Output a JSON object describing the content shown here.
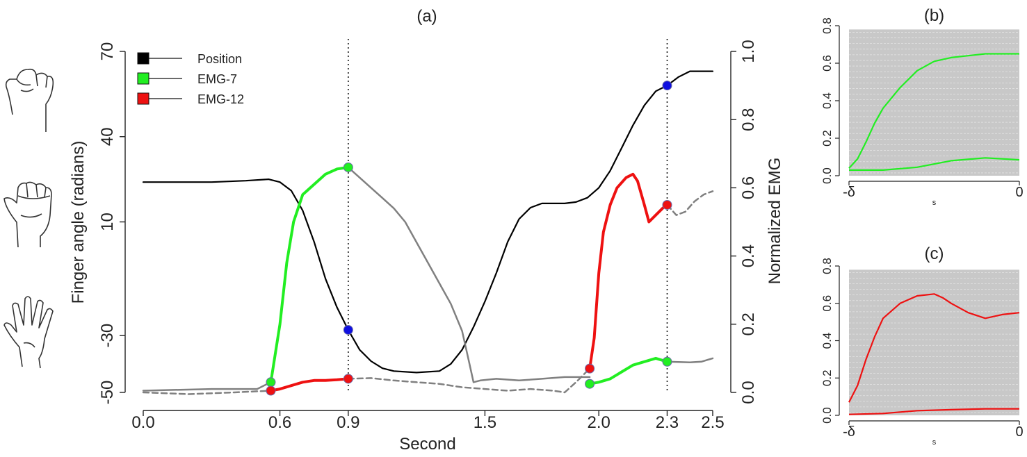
{
  "panels": {
    "a": "(a)",
    "b": "(b)",
    "c": "(c)"
  },
  "colors": {
    "position": "#000000",
    "emg7": "#22ee22",
    "emg12": "#ee1111",
    "gray": "#808080",
    "marker_blue": "#1010e0",
    "band": "#c8c8c8"
  },
  "icons": [
    "fist-icon",
    "half-closed-hand-icon",
    "open-hand-icon"
  ],
  "chart_data": [
    {
      "id": "a",
      "type": "line",
      "title": "(a)",
      "xlabel": "Second",
      "ylabel": "Finger angle (radians)",
      "y2label": "Normalized EMG",
      "xlim": [
        0,
        2.5
      ],
      "ylim": [
        -50,
        70
      ],
      "y2lim": [
        0,
        1
      ],
      "xticks": [
        {
          "v": 0.0,
          "label": "0.0"
        },
        {
          "v": 0.6,
          "label": "0.6"
        },
        {
          "v": 0.9,
          "label": "0.9"
        },
        {
          "v": 1.5,
          "label": "1.5"
        },
        {
          "v": 2.0,
          "label": "2.0"
        },
        {
          "v": 2.3,
          "label": "2.3"
        },
        {
          "v": 2.5,
          "label": "2.5"
        }
      ],
      "yticks": [
        {
          "v": -50,
          "label": "-50"
        },
        {
          "v": -30,
          "label": "-30"
        },
        {
          "v": 10,
          "label": "10"
        },
        {
          "v": 40,
          "label": "40"
        },
        {
          "v": 70,
          "label": "70"
        }
      ],
      "y2ticks": [
        {
          "v": 0.0,
          "label": "0.0"
        },
        {
          "v": 0.2,
          "label": "0.2"
        },
        {
          "v": 0.4,
          "label": "0.4"
        },
        {
          "v": 0.6,
          "label": "0.6"
        },
        {
          "v": 0.8,
          "label": "0.8"
        },
        {
          "v": 1.0,
          "label": "1.0"
        }
      ],
      "vlines": [
        0.9,
        2.3
      ],
      "legend": {
        "placement": "top-left",
        "entries": [
          {
            "label": "Position",
            "color": "#000000"
          },
          {
            "label": "EMG-7",
            "color": "#22ee22"
          },
          {
            "label": "EMG-12",
            "color": "#ee1111"
          }
        ]
      },
      "series": [
        {
          "name": "Position",
          "axis": "left",
          "color": "#000000",
          "width": 2.2,
          "points": [
            [
              0,
              24
            ],
            [
              0.3,
              24
            ],
            [
              0.45,
              24.5
            ],
            [
              0.55,
              25
            ],
            [
              0.6,
              24
            ],
            [
              0.65,
              21
            ],
            [
              0.7,
              14
            ],
            [
              0.75,
              3
            ],
            [
              0.8,
              -10
            ],
            [
              0.85,
              -20
            ],
            [
              0.9,
              -28
            ],
            [
              0.95,
              -35
            ],
            [
              1.0,
              -39
            ],
            [
              1.05,
              -41.5
            ],
            [
              1.1,
              -42.5
            ],
            [
              1.2,
              -43
            ],
            [
              1.3,
              -42.5
            ],
            [
              1.35,
              -40
            ],
            [
              1.4,
              -35
            ],
            [
              1.45,
              -27
            ],
            [
              1.5,
              -18
            ],
            [
              1.55,
              -8
            ],
            [
              1.6,
              3
            ],
            [
              1.65,
              11
            ],
            [
              1.7,
              15
            ],
            [
              1.75,
              16.5
            ],
            [
              1.8,
              16.5
            ],
            [
              1.85,
              16.5
            ],
            [
              1.9,
              17
            ],
            [
              1.95,
              18.5
            ],
            [
              2.0,
              22
            ],
            [
              2.05,
              28
            ],
            [
              2.1,
              36
            ],
            [
              2.15,
              44
            ],
            [
              2.2,
              51
            ],
            [
              2.25,
              56
            ],
            [
              2.3,
              58
            ],
            [
              2.35,
              61
            ],
            [
              2.4,
              63
            ],
            [
              2.5,
              63
            ]
          ]
        },
        {
          "name": "EMG-7",
          "axis": "right",
          "color": "#22ee22",
          "width": 4,
          "points": [
            [
              0.56,
              0.03
            ],
            [
              0.6,
              0.2
            ],
            [
              0.63,
              0.38
            ],
            [
              0.66,
              0.5
            ],
            [
              0.7,
              0.58
            ],
            [
              0.75,
              0.61
            ],
            [
              0.8,
              0.64
            ],
            [
              0.85,
              0.655
            ],
            [
              0.9,
              0.66
            ]
          ]
        },
        {
          "name": "EMG-7",
          "axis": "right",
          "color": "#22ee22",
          "width": 4,
          "points": [
            [
              1.96,
              0.025
            ],
            [
              2.0,
              0.03
            ],
            [
              2.05,
              0.04
            ],
            [
              2.1,
              0.06
            ],
            [
              2.15,
              0.08
            ],
            [
              2.2,
              0.09
            ],
            [
              2.25,
              0.1
            ],
            [
              2.3,
              0.09
            ]
          ]
        },
        {
          "name": "EMG-12",
          "axis": "right",
          "color": "#ee1111",
          "width": 4,
          "points": [
            [
              0.56,
              0.005
            ],
            [
              0.6,
              0.01
            ],
            [
              0.65,
              0.02
            ],
            [
              0.7,
              0.03
            ],
            [
              0.75,
              0.035
            ],
            [
              0.8,
              0.035
            ],
            [
              0.85,
              0.037
            ],
            [
              0.9,
              0.04
            ]
          ]
        },
        {
          "name": "EMG-12",
          "axis": "right",
          "color": "#ee1111",
          "width": 4,
          "points": [
            [
              1.96,
              0.07
            ],
            [
              1.98,
              0.16
            ],
            [
              2.0,
              0.35
            ],
            [
              2.02,
              0.47
            ],
            [
              2.05,
              0.55
            ],
            [
              2.08,
              0.6
            ],
            [
              2.12,
              0.63
            ],
            [
              2.15,
              0.64
            ],
            [
              2.17,
              0.62
            ],
            [
              2.2,
              0.55
            ],
            [
              2.22,
              0.5
            ],
            [
              2.25,
              0.52
            ],
            [
              2.28,
              0.54
            ],
            [
              2.3,
              0.55
            ]
          ]
        },
        {
          "name": "",
          "axis": "right",
          "color": "#808080",
          "width": 2.5,
          "points": [
            [
              0,
              0.005
            ],
            [
              0.3,
              0.01
            ],
            [
              0.5,
              0.01
            ],
            [
              0.56,
              0.03
            ]
          ]
        },
        {
          "name": "",
          "axis": "right",
          "color": "#808080",
          "width": 2.5,
          "dash": "8,5",
          "points": [
            [
              0,
              0.0
            ],
            [
              0.2,
              -0.005
            ],
            [
              0.4,
              0.0
            ],
            [
              0.56,
              0.005
            ]
          ]
        },
        {
          "name": "",
          "axis": "right",
          "color": "#808080",
          "width": 2.5,
          "points": [
            [
              0.9,
              0.66
            ],
            [
              0.95,
              0.63
            ],
            [
              1.0,
              0.6
            ],
            [
              1.05,
              0.57
            ],
            [
              1.1,
              0.54
            ],
            [
              1.15,
              0.5
            ],
            [
              1.2,
              0.44
            ],
            [
              1.25,
              0.38
            ],
            [
              1.3,
              0.32
            ],
            [
              1.35,
              0.26
            ],
            [
              1.4,
              0.18
            ],
            [
              1.43,
              0.09
            ],
            [
              1.45,
              0.03
            ],
            [
              1.48,
              0.035
            ],
            [
              1.55,
              0.04
            ],
            [
              1.65,
              0.035
            ],
            [
              1.75,
              0.04
            ],
            [
              1.85,
              0.045
            ],
            [
              1.96,
              0.045
            ]
          ]
        },
        {
          "name": "",
          "axis": "right",
          "color": "#808080",
          "width": 2.5,
          "dash": "8,5",
          "points": [
            [
              0.9,
              0.04
            ],
            [
              1.0,
              0.042
            ],
            [
              1.1,
              0.035
            ],
            [
              1.2,
              0.03
            ],
            [
              1.3,
              0.025
            ],
            [
              1.4,
              0.015
            ],
            [
              1.5,
              0.01
            ],
            [
              1.6,
              0.005
            ],
            [
              1.7,
              0.01
            ],
            [
              1.8,
              0.005
            ],
            [
              1.85,
              0.0
            ],
            [
              1.9,
              0.03
            ],
            [
              1.96,
              0.07
            ]
          ]
        },
        {
          "name": "",
          "axis": "right",
          "color": "#808080",
          "width": 2.5,
          "points": [
            [
              2.3,
              0.09
            ],
            [
              2.4,
              0.088
            ],
            [
              2.45,
              0.09
            ],
            [
              2.5,
              0.1
            ]
          ]
        },
        {
          "name": "",
          "axis": "right",
          "color": "#808080",
          "width": 2.5,
          "dash": "8,5",
          "points": [
            [
              2.3,
              0.55
            ],
            [
              2.34,
              0.52
            ],
            [
              2.38,
              0.53
            ],
            [
              2.42,
              0.56
            ],
            [
              2.46,
              0.58
            ],
            [
              2.5,
              0.59
            ]
          ]
        }
      ],
      "markers": [
        {
          "x": 0.9,
          "y": -28,
          "axis": "left",
          "color": "#1010e0"
        },
        {
          "x": 2.3,
          "y": 58,
          "axis": "left",
          "color": "#1010e0"
        },
        {
          "x": 0.56,
          "y": 0.03,
          "axis": "right",
          "color": "#22ee22"
        },
        {
          "x": 0.9,
          "y": 0.66,
          "axis": "right",
          "color": "#22ee22"
        },
        {
          "x": 1.96,
          "y": 0.025,
          "axis": "right",
          "color": "#22ee22"
        },
        {
          "x": 2.3,
          "y": 0.09,
          "axis": "right",
          "color": "#22ee22"
        },
        {
          "x": 0.56,
          "y": 0.005,
          "axis": "right",
          "color": "#ee1111"
        },
        {
          "x": 0.9,
          "y": 0.04,
          "axis": "right",
          "color": "#ee1111"
        },
        {
          "x": 1.96,
          "y": 0.07,
          "axis": "right",
          "color": "#ee1111"
        },
        {
          "x": 2.3,
          "y": 0.55,
          "axis": "right",
          "color": "#ee1111"
        }
      ]
    },
    {
      "id": "b",
      "type": "line",
      "title": "(b)",
      "xlabel": "s",
      "xlim": [
        -1,
        0
      ],
      "ylim": [
        0,
        0.8
      ],
      "xticks": [
        {
          "v": -1,
          "label": "-δ"
        },
        {
          "v": 0,
          "label": "0"
        }
      ],
      "yticks": [
        {
          "v": 0.0,
          "label": "0.0"
        },
        {
          "v": 0.2,
          "label": "0.2"
        },
        {
          "v": 0.4,
          "label": "0.4"
        },
        {
          "v": 0.6,
          "label": "0.6"
        },
        {
          "v": 0.8,
          "label": "0.8"
        }
      ],
      "band": {
        "low": 0.0,
        "high": 0.78,
        "color": "#c8c8c8"
      },
      "series": [
        {
          "name": "",
          "color": "#22ee22",
          "width": 2.2,
          "points": [
            [
              -1,
              0.04
            ],
            [
              -0.95,
              0.09
            ],
            [
              -0.9,
              0.18
            ],
            [
              -0.85,
              0.28
            ],
            [
              -0.8,
              0.36
            ],
            [
              -0.7,
              0.47
            ],
            [
              -0.6,
              0.56
            ],
            [
              -0.5,
              0.61
            ],
            [
              -0.4,
              0.63
            ],
            [
              -0.3,
              0.64
            ],
            [
              -0.2,
              0.65
            ],
            [
              -0.1,
              0.65
            ],
            [
              0,
              0.65
            ]
          ]
        },
        {
          "name": "",
          "color": "#22ee22",
          "width": 2.2,
          "points": [
            [
              -1,
              0.03
            ],
            [
              -0.8,
              0.03
            ],
            [
              -0.6,
              0.045
            ],
            [
              -0.4,
              0.08
            ],
            [
              -0.2,
              0.095
            ],
            [
              0,
              0.085
            ]
          ]
        }
      ]
    },
    {
      "id": "c",
      "type": "line",
      "title": "(c)",
      "xlabel": "s",
      "xlim": [
        -1,
        0
      ],
      "ylim": [
        0,
        0.8
      ],
      "xticks": [
        {
          "v": -1,
          "label": "-δ"
        },
        {
          "v": 0,
          "label": "0"
        }
      ],
      "yticks": [
        {
          "v": 0.0,
          "label": "0.0"
        },
        {
          "v": 0.2,
          "label": "0.2"
        },
        {
          "v": 0.4,
          "label": "0.4"
        },
        {
          "v": 0.6,
          "label": "0.6"
        },
        {
          "v": 0.8,
          "label": "0.8"
        }
      ],
      "band": {
        "low": 0.0,
        "high": 0.78,
        "color": "#c8c8c8"
      },
      "series": [
        {
          "name": "",
          "color": "#ee1111",
          "width": 2.2,
          "points": [
            [
              -1,
              0.07
            ],
            [
              -0.95,
              0.16
            ],
            [
              -0.9,
              0.3
            ],
            [
              -0.85,
              0.42
            ],
            [
              -0.8,
              0.52
            ],
            [
              -0.7,
              0.6
            ],
            [
              -0.6,
              0.64
            ],
            [
              -0.5,
              0.65
            ],
            [
              -0.45,
              0.63
            ],
            [
              -0.4,
              0.6
            ],
            [
              -0.3,
              0.55
            ],
            [
              -0.2,
              0.52
            ],
            [
              -0.1,
              0.54
            ],
            [
              0,
              0.55
            ]
          ]
        },
        {
          "name": "",
          "color": "#ee1111",
          "width": 2.2,
          "points": [
            [
              -1,
              0.005
            ],
            [
              -0.8,
              0.01
            ],
            [
              -0.6,
              0.025
            ],
            [
              -0.4,
              0.03
            ],
            [
              -0.2,
              0.035
            ],
            [
              0,
              0.035
            ]
          ]
        }
      ]
    }
  ]
}
